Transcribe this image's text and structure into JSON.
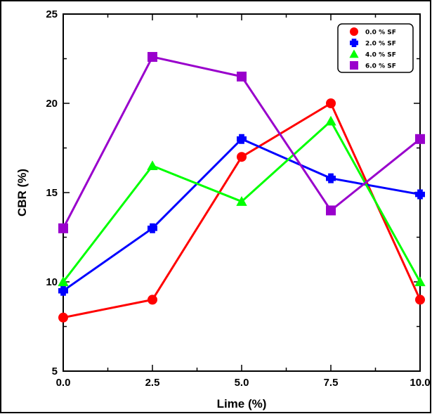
{
  "chart_data": {
    "type": "line",
    "title": "",
    "xlabel": "Lime (%)",
    "ylabel": "CBR (%)",
    "xlim": [
      0,
      10
    ],
    "ylim": [
      5,
      25
    ],
    "x_ticks": [
      "0.0",
      "2.5",
      "5.0",
      "7.5",
      "10.0"
    ],
    "y_ticks": [
      "5",
      "10",
      "15",
      "20",
      "25"
    ],
    "x": [
      0,
      2.5,
      5,
      7.5,
      10
    ],
    "grid": false,
    "legend_position": "top-right",
    "series": [
      {
        "name": "0.0 % SF",
        "color": "#ff0000",
        "marker": "circle",
        "values": [
          8,
          9,
          17,
          20,
          9
        ]
      },
      {
        "name": "2.0 % SF",
        "color": "#0000ff",
        "marker": "plus",
        "values": [
          9.5,
          13,
          18,
          15.8,
          14.9
        ]
      },
      {
        "name": "4.0 % SF",
        "color": "#00ff00",
        "marker": "triangle",
        "values": [
          10,
          16.5,
          14.5,
          19,
          10
        ]
      },
      {
        "name": "6.0 % SF",
        "color": "#9900cc",
        "marker": "square",
        "values": [
          13,
          22.6,
          21.5,
          14,
          18
        ]
      }
    ]
  }
}
